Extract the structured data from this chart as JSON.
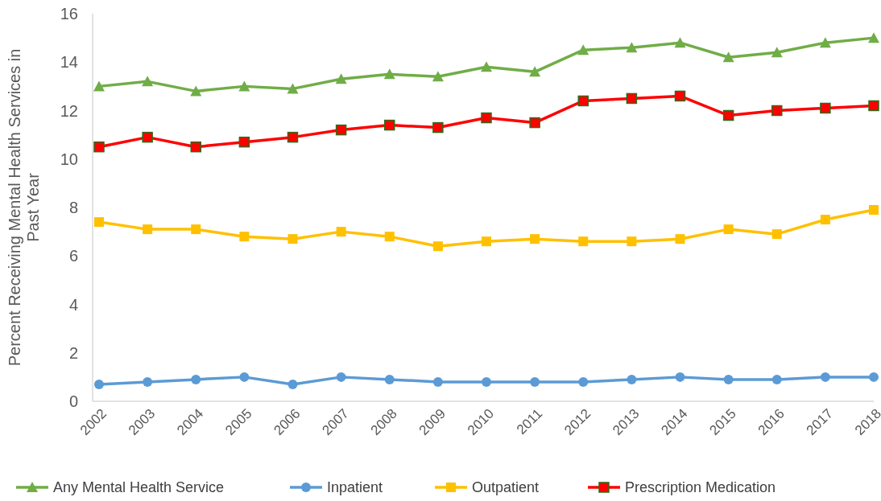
{
  "chart_data": {
    "type": "line",
    "ylabel": "Percent Receiving Mental Health Services in Past Year",
    "categories": [
      "2002",
      "2003",
      "2004",
      "2005",
      "2006",
      "2007",
      "2008",
      "2009",
      "2010",
      "2011",
      "2012",
      "2013",
      "2014",
      "2015",
      "2016",
      "2017",
      "2018"
    ],
    "ylim": [
      0,
      16
    ],
    "yticks": [
      0,
      2,
      4,
      6,
      8,
      10,
      12,
      14,
      16
    ],
    "grid": false,
    "legend": "bottom",
    "line_style": "solid",
    "series": [
      {
        "name": "Any Mental Health Service",
        "color": "#70ad47",
        "marker": "triangle",
        "values": [
          13.0,
          13.2,
          12.8,
          13.0,
          12.9,
          13.3,
          13.5,
          13.4,
          13.8,
          13.6,
          14.5,
          14.6,
          14.8,
          14.2,
          14.4,
          14.8,
          15.0
        ]
      },
      {
        "name": "Inpatient",
        "color": "#5b9bd5",
        "marker": "circle",
        "values": [
          0.7,
          0.8,
          0.9,
          1.0,
          0.7,
          1.0,
          0.9,
          0.8,
          0.8,
          0.8,
          0.8,
          0.9,
          1.0,
          0.9,
          0.9,
          1.0,
          1.0
        ]
      },
      {
        "name": "Outpatient",
        "color": "#ffc000",
        "marker": "square",
        "values": [
          7.4,
          7.1,
          7.1,
          6.8,
          6.7,
          7.0,
          6.8,
          6.4,
          6.6,
          6.7,
          6.6,
          6.6,
          6.7,
          7.1,
          6.9,
          7.5,
          7.9
        ]
      },
      {
        "name": "Prescription Medication",
        "color": "#ff0000",
        "marker": "square",
        "values": [
          10.5,
          10.9,
          10.5,
          10.7,
          10.9,
          11.2,
          11.4,
          11.3,
          11.7,
          11.5,
          12.4,
          12.5,
          12.6,
          11.8,
          12.0,
          12.1,
          12.2
        ]
      }
    ]
  }
}
